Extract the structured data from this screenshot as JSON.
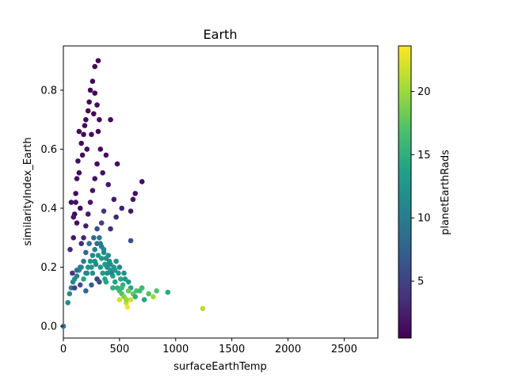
{
  "chart_data": {
    "type": "scatter",
    "title": "Earth",
    "xlabel": "surfaceEarthTemp",
    "ylabel": "similarityIndex_Earth",
    "xlim": [
      0,
      2800
    ],
    "ylim": [
      -0.04,
      0.95
    ],
    "xticks": [
      0,
      500,
      1000,
      1500,
      2000,
      2500
    ],
    "yticks": [
      0.0,
      0.2,
      0.4,
      0.6,
      0.8
    ],
    "grid": false,
    "legend": "none",
    "colorbar": {
      "label": "planetEarthRads",
      "range": [
        0.5,
        23.6
      ],
      "ticks": [
        5,
        10,
        15,
        20
      ],
      "colormap": "viridis"
    },
    "series": [
      {
        "points": [
          [
            0,
            0.0,
            9.5
          ],
          [
            40,
            0.08,
            11
          ],
          [
            55,
            0.11,
            11.5
          ],
          [
            70,
            0.13,
            10
          ],
          [
            85,
            0.15,
            11
          ],
          [
            100,
            0.16,
            12
          ],
          [
            120,
            0.17,
            11
          ],
          [
            140,
            0.19,
            12
          ],
          [
            160,
            0.2,
            12
          ],
          [
            180,
            0.16,
            14
          ],
          [
            200,
            0.18,
            13
          ],
          [
            220,
            0.2,
            12
          ],
          [
            240,
            0.22,
            12
          ],
          [
            260,
            0.24,
            11
          ],
          [
            280,
            0.26,
            10
          ],
          [
            300,
            0.28,
            9
          ],
          [
            320,
            0.3,
            9
          ],
          [
            340,
            0.27,
            10
          ],
          [
            360,
            0.25,
            11
          ],
          [
            380,
            0.23,
            12
          ],
          [
            400,
            0.21,
            13
          ],
          [
            420,
            0.19,
            13
          ],
          [
            440,
            0.17,
            14
          ],
          [
            460,
            0.15,
            14
          ],
          [
            480,
            0.13,
            15
          ],
          [
            500,
            0.12,
            16
          ],
          [
            520,
            0.11,
            17
          ],
          [
            540,
            0.1,
            19
          ],
          [
            560,
            0.08,
            21
          ],
          [
            570,
            0.065,
            23
          ],
          [
            600,
            0.09,
            22
          ],
          [
            620,
            0.11,
            18
          ],
          [
            650,
            0.12,
            17
          ],
          [
            700,
            0.13,
            16
          ],
          [
            720,
            0.09,
            14
          ],
          [
            760,
            0.11,
            17
          ],
          [
            800,
            0.1,
            20
          ],
          [
            830,
            0.12,
            17
          ],
          [
            930,
            0.115,
            14.5
          ],
          [
            1240,
            0.06,
            21
          ],
          [
            250,
            0.2,
            12.5
          ],
          [
            280,
            0.22,
            12
          ],
          [
            310,
            0.24,
            12.5
          ],
          [
            330,
            0.2,
            13
          ],
          [
            350,
            0.18,
            13.5
          ],
          [
            370,
            0.16,
            14
          ],
          [
            390,
            0.2,
            12
          ],
          [
            410,
            0.22,
            12
          ],
          [
            430,
            0.18,
            11
          ],
          [
            450,
            0.2,
            13
          ],
          [
            470,
            0.22,
            12
          ],
          [
            490,
            0.18,
            13
          ],
          [
            510,
            0.16,
            14
          ],
          [
            530,
            0.14,
            15
          ],
          [
            550,
            0.16,
            13
          ],
          [
            440,
            0.13,
            15
          ],
          [
            380,
            0.15,
            14
          ],
          [
            300,
            0.16,
            5
          ],
          [
            320,
            0.15,
            6
          ],
          [
            250,
            0.14,
            7
          ],
          [
            200,
            0.12,
            8
          ],
          [
            150,
            0.14,
            6
          ],
          [
            100,
            0.13,
            5
          ],
          [
            80,
            0.18,
            4
          ],
          [
            60,
            0.26,
            3
          ],
          [
            90,
            0.3,
            2
          ],
          [
            120,
            0.35,
            1.5
          ],
          [
            150,
            0.4,
            1
          ],
          [
            100,
            0.38,
            1.2
          ],
          [
            70,
            0.42,
            1.5
          ],
          [
            110,
            0.45,
            1.3
          ],
          [
            140,
            0.52,
            1
          ],
          [
            170,
            0.58,
            1.2
          ],
          [
            160,
            0.62,
            1
          ],
          [
            180,
            0.65,
            0.9
          ],
          [
            190,
            0.68,
            1.1
          ],
          [
            200,
            0.7,
            1
          ],
          [
            220,
            0.73,
            0.9
          ],
          [
            230,
            0.76,
            1
          ],
          [
            240,
            0.8,
            0.8
          ],
          [
            260,
            0.83,
            0.9
          ],
          [
            280,
            0.88,
            1
          ],
          [
            310,
            0.9,
            0.8
          ],
          [
            300,
            0.75,
            1.1
          ],
          [
            320,
            0.7,
            1
          ],
          [
            310,
            0.66,
            0.9
          ],
          [
            330,
            0.6,
            1.2
          ],
          [
            300,
            0.55,
            1.3
          ],
          [
            280,
            0.5,
            1.5
          ],
          [
            260,
            0.46,
            1.8
          ],
          [
            240,
            0.42,
            2
          ],
          [
            220,
            0.38,
            2.2
          ],
          [
            200,
            0.34,
            2.5
          ],
          [
            180,
            0.3,
            3
          ],
          [
            160,
            0.28,
            3.2
          ],
          [
            350,
            0.52,
            1.4
          ],
          [
            380,
            0.58,
            1.2
          ],
          [
            420,
            0.7,
            1
          ],
          [
            400,
            0.48,
            2
          ],
          [
            450,
            0.43,
            2.2
          ],
          [
            470,
            0.37,
            3
          ],
          [
            420,
            0.33,
            3.5
          ],
          [
            600,
            0.39,
            2
          ],
          [
            620,
            0.43,
            1.8
          ],
          [
            640,
            0.45,
            1.5
          ],
          [
            700,
            0.49,
            1.3
          ],
          [
            600,
            0.29,
            6
          ],
          [
            520,
            0.4,
            2.5
          ],
          [
            480,
            0.55,
            1.5
          ],
          [
            360,
            0.39,
            4
          ],
          [
            340,
            0.35,
            5
          ],
          [
            300,
            0.33,
            6
          ],
          [
            200,
            0.25,
            8
          ],
          [
            230,
            0.28,
            9
          ],
          [
            270,
            0.3,
            8
          ],
          [
            330,
            0.28,
            10
          ],
          [
            360,
            0.26,
            11
          ],
          [
            400,
            0.24,
            12
          ],
          [
            420,
            0.21,
            12
          ],
          [
            460,
            0.19,
            13
          ],
          [
            500,
            0.2,
            11
          ],
          [
            540,
            0.18,
            12
          ],
          [
            580,
            0.15,
            13
          ],
          [
            600,
            0.13,
            14
          ],
          [
            640,
            0.1,
            15
          ],
          [
            680,
            0.12,
            16
          ],
          [
            500,
            0.09,
            22
          ],
          [
            560,
            0.09,
            20
          ],
          [
            580,
            0.12,
            18
          ],
          [
            520,
            0.13,
            16
          ],
          [
            140,
            0.66,
            1.1
          ],
          [
            130,
            0.56,
            1.3
          ],
          [
            120,
            0.5,
            1.4
          ],
          [
            110,
            0.42,
            1.6
          ],
          [
            90,
            0.37,
            1.8
          ],
          [
            210,
            0.6,
            1.2
          ],
          [
            250,
            0.65,
            1.1
          ],
          [
            270,
            0.72,
            1
          ],
          [
            280,
            0.79,
            0.9
          ],
          [
            150,
            0.2,
            10
          ],
          [
            120,
            0.19,
            9
          ],
          [
            180,
            0.22,
            10
          ],
          [
            210,
            0.18,
            11
          ],
          [
            260,
            0.18,
            12
          ],
          [
            290,
            0.21,
            11
          ],
          [
            340,
            0.23,
            13
          ],
          [
            370,
            0.21,
            13
          ],
          [
            390,
            0.18,
            12
          ]
        ]
      }
    ]
  }
}
